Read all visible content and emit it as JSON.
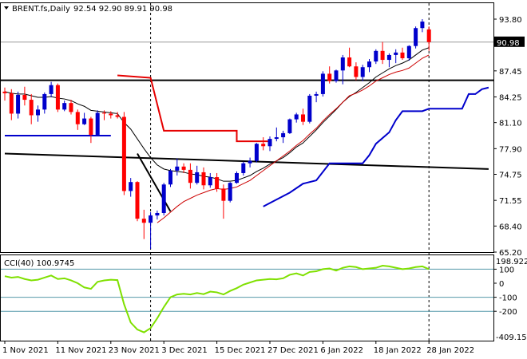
{
  "header": {
    "title": "BRENT.fs,Daily",
    "ohlc": "92.54 92.90 89.91 90.98",
    "menu_arrow": "triangle-down-icon"
  },
  "price_badge": "90.98",
  "indicator": {
    "title": "CCI(40) 100.9745",
    "top_value": "198.9222",
    "bottom_value": "-409.152"
  },
  "colors": {
    "bull": "#0000cc",
    "bear": "#ff0000",
    "ma_fast": "#000000",
    "ma_slow": "#cc0000",
    "stop_red": "#e60000",
    "stop_blue": "#0000cc",
    "trend": "#000000",
    "cci": "#7fe000",
    "levels": "#5599aa"
  },
  "chart_data": [
    {
      "type": "candlestick",
      "title": "BRENT.fs,Daily",
      "y_ticks": [
        "93.80",
        "90.98",
        "87.45",
        "84.25",
        "81.10",
        "77.90",
        "74.75",
        "71.55",
        "68.40",
        "65.20"
      ],
      "y_range": [
        65.2,
        93.8
      ],
      "x_ticks": [
        "1 Nov 2021",
        "11 Nov 2021",
        "23 Nov 2021",
        "3 Dec 2021",
        "15 Dec 2021",
        "27 Dec 2021",
        "6 Jan 2022",
        "18 Jan 2022",
        "28 Jan 2022"
      ],
      "x_tick_bar_index": [
        0,
        8,
        16,
        24,
        32,
        40,
        48,
        56,
        64
      ],
      "ohlc": [
        [
          84.9,
          85.4,
          83.8,
          84.7
        ],
        [
          84.7,
          85.2,
          81.4,
          82.2
        ],
        [
          82.2,
          84.9,
          81.6,
          84.5
        ],
        [
          84.5,
          85.5,
          83.2,
          83.9
        ],
        [
          83.9,
          84.6,
          80.9,
          82.0
        ],
        [
          82.0,
          83.2,
          81.2,
          82.7
        ],
        [
          82.7,
          84.8,
          82.2,
          84.6
        ],
        [
          84.6,
          86.1,
          84.2,
          85.7
        ],
        [
          85.7,
          85.9,
          82.4,
          82.7
        ],
        [
          82.7,
          83.8,
          82.5,
          83.5
        ],
        [
          83.5,
          83.9,
          82.1,
          82.4
        ],
        [
          82.4,
          82.7,
          80.2,
          80.9
        ],
        [
          80.9,
          82.3,
          80.8,
          81.6
        ],
        [
          81.6,
          81.8,
          78.6,
          79.6
        ],
        [
          79.6,
          82.6,
          79.4,
          82.3
        ],
        [
          82.3,
          82.6,
          81.4,
          82.2
        ],
        [
          82.2,
          82.5,
          81.6,
          82.0
        ],
        [
          82.0,
          82.4,
          81.6,
          81.8
        ],
        [
          81.8,
          82.4,
          72.2,
          72.7
        ],
        [
          72.7,
          74.3,
          72.0,
          73.8
        ],
        [
          73.8,
          73.9,
          69.0,
          69.3
        ],
        [
          69.3,
          70.4,
          66.8,
          68.8
        ],
        [
          68.8,
          70.1,
          65.6,
          69.7
        ],
        [
          69.7,
          70.3,
          69.2,
          70.0
        ],
        [
          70.0,
          73.7,
          69.7,
          73.5
        ],
        [
          73.5,
          75.4,
          73.2,
          75.2
        ],
        [
          75.2,
          76.7,
          74.6,
          75.7
        ],
        [
          75.7,
          76.1,
          74.9,
          75.3
        ],
        [
          75.3,
          76.1,
          73.0,
          73.7
        ],
        [
          73.7,
          75.8,
          73.5,
          75.0
        ],
        [
          75.0,
          75.6,
          72.9,
          73.4
        ],
        [
          73.4,
          74.9,
          73.1,
          74.4
        ],
        [
          74.4,
          74.9,
          72.6,
          73.0
        ],
        [
          73.0,
          73.5,
          69.3,
          71.5
        ],
        [
          71.5,
          73.8,
          71.3,
          73.7
        ],
        [
          73.7,
          75.1,
          73.6,
          74.9
        ],
        [
          74.9,
          76.3,
          74.6,
          76.1
        ],
        [
          76.1,
          76.8,
          75.6,
          76.4
        ],
        [
          76.4,
          78.6,
          76.2,
          78.5
        ],
        [
          78.5,
          79.3,
          77.7,
          78.2
        ],
        [
          78.2,
          79.4,
          77.6,
          79.1
        ],
        [
          79.1,
          80.5,
          78.8,
          79.3
        ],
        [
          79.3,
          80.1,
          78.6,
          79.8
        ],
        [
          79.8,
          81.6,
          79.7,
          81.5
        ],
        [
          81.5,
          82.3,
          81.1,
          82.1
        ],
        [
          82.1,
          82.8,
          80.8,
          81.2
        ],
        [
          81.2,
          84.6,
          81.0,
          84.4
        ],
        [
          84.4,
          84.9,
          83.6,
          84.6
        ],
        [
          84.6,
          87.4,
          84.3,
          87.1
        ],
        [
          87.1,
          88.0,
          85.9,
          86.2
        ],
        [
          86.2,
          87.6,
          86.0,
          87.5
        ],
        [
          87.5,
          89.4,
          85.8,
          89.1
        ],
        [
          89.1,
          90.3,
          87.9,
          88.0
        ],
        [
          88.0,
          88.5,
          86.3,
          86.7
        ],
        [
          86.7,
          88.2,
          86.2,
          87.9
        ],
        [
          87.9,
          88.9,
          87.3,
          88.6
        ],
        [
          88.6,
          90.1,
          88.3,
          89.9
        ],
        [
          89.9,
          91.0,
          88.3,
          88.8
        ],
        [
          88.8,
          89.6,
          87.9,
          89.4
        ],
        [
          89.4,
          90.1,
          88.4,
          89.7
        ],
        [
          89.7,
          90.3,
          88.8,
          89.0
        ],
        [
          89.0,
          90.6,
          88.7,
          90.5
        ],
        [
          90.5,
          92.9,
          90.2,
          92.7
        ],
        [
          92.7,
          93.8,
          92.2,
          93.5
        ],
        [
          92.54,
          92.9,
          89.91,
          90.98
        ]
      ],
      "overlays": {
        "ma_fast": [
          84.9,
          84.7,
          84.6,
          84.6,
          84.4,
          84.2,
          84.2,
          84.3,
          84.1,
          84.0,
          83.8,
          83.4,
          83.1,
          82.6,
          82.5,
          82.4,
          82.3,
          82.2,
          81.1,
          80.3,
          79.1,
          77.9,
          76.8,
          75.9,
          75.4,
          75.2,
          75.1,
          75.0,
          74.8,
          74.7,
          74.5,
          74.4,
          74.2,
          73.9,
          73.9,
          74.0,
          74.3,
          74.6,
          75.1,
          75.5,
          76.0,
          76.4,
          76.8,
          77.4,
          78.1,
          78.6,
          79.4,
          80.2,
          81.1,
          81.9,
          82.7,
          83.6,
          84.3,
          84.8,
          85.4,
          86.0,
          86.7,
          87.2,
          87.7,
          88.1,
          88.4,
          88.8,
          89.4,
          90.0,
          90.3
        ],
        "ma_slow": [
          null,
          null,
          null,
          null,
          null,
          null,
          null,
          null,
          null,
          null,
          null,
          null,
          null,
          null,
          null,
          null,
          null,
          null,
          null,
          null,
          null,
          null,
          null,
          68.8,
          69.4,
          70.1,
          70.8,
          71.4,
          71.8,
          72.2,
          72.5,
          72.8,
          73.0,
          72.9,
          73.0,
          73.2,
          73.6,
          74.0,
          74.6,
          75.2,
          75.8,
          76.4,
          77.0,
          77.6,
          78.3,
          78.9,
          79.7,
          80.4,
          81.3,
          82.1,
          82.8,
          83.6,
          84.4,
          84.7,
          85.1,
          85.6,
          86.2,
          86.6,
          87.0,
          87.3,
          87.5,
          87.8,
          88.4,
          89.0,
          89.4
        ],
        "stop_red": [
          null,
          null,
          null,
          null,
          null,
          null,
          null,
          null,
          null,
          null,
          null,
          null,
          null,
          null,
          null,
          null,
          null,
          null,
          87.2,
          86.6,
          86.6,
          86.6,
          86.6,
          86.6,
          null,
          null,
          null,
          null,
          null,
          null,
          null,
          null,
          null,
          null,
          null,
          null,
          null,
          null,
          null,
          null,
          null,
          null,
          null,
          null,
          null,
          null,
          null,
          null,
          null,
          null,
          null,
          null,
          null,
          null,
          null,
          null,
          null,
          null,
          null,
          null,
          null,
          null,
          null,
          null,
          null
        ],
        "stop_blue": [
          null,
          null,
          null,
          null,
          null,
          null,
          null,
          null,
          null,
          null,
          null,
          null,
          null,
          null,
          null,
          null,
          null,
          null,
          null,
          null,
          null,
          null,
          null,
          null,
          null,
          null,
          null,
          null,
          null,
          null,
          null,
          null,
          null,
          null,
          null,
          null,
          null,
          null,
          null,
          null,
          null,
          null,
          null,
          null,
          null,
          null,
          null,
          null,
          null,
          null,
          null,
          null,
          null,
          null,
          null,
          null,
          null,
          null,
          null,
          null,
          null,
          null,
          null,
          null,
          null
        ]
      },
      "trend_line": [
        [
          0,
          77.3
        ],
        [
          73,
          75.4
        ]
      ],
      "h_line": 86.3,
      "seg_lines": [
        {
          "color": "stop_blue",
          "points": [
            [
              0,
              79.5
            ],
            [
              16,
              79.5
            ]
          ]
        },
        {
          "color": "stop_red",
          "points": [
            [
              17,
              86.9
            ],
            [
              22,
              86.6
            ],
            [
              24,
              80.1
            ],
            [
              35,
              80.1
            ],
            [
              35,
              78.8
            ],
            [
              40,
              78.8
            ]
          ]
        },
        {
          "color": "stop_blue",
          "points": [
            [
              39,
              70.8
            ],
            [
              43,
              72.5
            ],
            [
              45,
              73.6
            ],
            [
              47,
              74.0
            ],
            [
              49,
              76.1
            ],
            [
              50,
              76.1
            ],
            [
              54,
              76.1
            ],
            [
              55,
              77.1
            ],
            [
              56,
              78.5
            ],
            [
              58,
              79.9
            ],
            [
              59,
              81.4
            ],
            [
              60,
              82.5
            ],
            [
              61,
              82.5
            ],
            [
              63,
              82.5
            ],
            [
              64,
              82.8
            ],
            [
              66,
              82.8
            ],
            [
              69,
              82.8
            ],
            [
              70,
              84.6
            ],
            [
              71,
              84.6
            ],
            [
              72,
              85.2
            ],
            [
              73,
              85.4
            ]
          ]
        },
        {
          "color": "trend",
          "points": [
            [
              20,
              77.3
            ],
            [
              25,
              70.2
            ]
          ]
        }
      ],
      "price_marker": 90.98,
      "vlines_dashed": [
        22,
        64
      ]
    },
    {
      "type": "line",
      "title": "CCI(40) 100.9745",
      "y_ticks": [
        "100",
        "0",
        "-100",
        "-200"
      ],
      "y_range": [
        -409.152,
        198.9222
      ],
      "levels": [
        100,
        -100,
        -200
      ],
      "x": "bar index",
      "values": [
        50,
        40,
        45,
        30,
        20,
        25,
        40,
        55,
        30,
        35,
        20,
        0,
        -30,
        -40,
        10,
        20,
        25,
        22,
        -150,
        -280,
        -330,
        -350,
        -320,
        -250,
        -170,
        -100,
        -80,
        -75,
        -80,
        -70,
        -78,
        -60,
        -65,
        -80,
        -55,
        -35,
        -10,
        5,
        20,
        25,
        30,
        28,
        35,
        60,
        70,
        55,
        80,
        85,
        100,
        105,
        90,
        110,
        120,
        115,
        100,
        105,
        110,
        125,
        120,
        110,
        100,
        105,
        115,
        120,
        100
      ]
    }
  ]
}
